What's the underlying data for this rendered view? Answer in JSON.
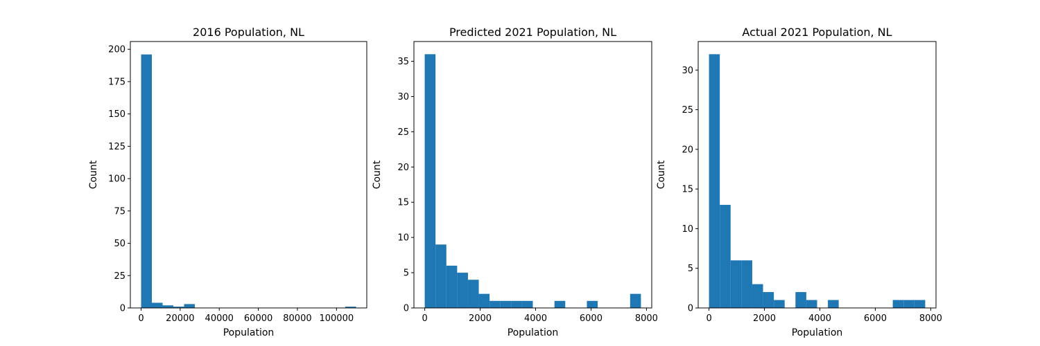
{
  "colors": {
    "bar": "#1f77b4",
    "axes": "#000000",
    "background": "#ffffff"
  },
  "chart_data": [
    {
      "type": "bar",
      "title": "2016 Population, NL",
      "xlabel": "Population",
      "ylabel": "Count",
      "xlim": [
        -5500,
        115500
      ],
      "ylim": [
        0,
        206
      ],
      "x_ticks": [
        0,
        20000,
        40000,
        60000,
        80000,
        100000
      ],
      "x_tick_labels": [
        "0",
        "20000",
        "40000",
        "60000",
        "80000",
        "100000"
      ],
      "y_ticks": [
        0,
        25,
        50,
        75,
        100,
        125,
        150,
        175,
        200
      ],
      "y_tick_labels": [
        "0",
        "25",
        "50",
        "75",
        "100",
        "125",
        "150",
        "175",
        "200"
      ],
      "bin_range": [
        0,
        110000
      ],
      "bin_counts": [
        196,
        4,
        2,
        1,
        3,
        0,
        0,
        0,
        0,
        0,
        0,
        0,
        0,
        0,
        0,
        0,
        0,
        0,
        0,
        1
      ]
    },
    {
      "type": "bar",
      "title": "Predicted 2021 Population, NL",
      "xlabel": "Population",
      "ylabel": "Count",
      "xlim": [
        -390,
        8190
      ],
      "ylim": [
        0,
        37.8
      ],
      "x_ticks": [
        0,
        2000,
        4000,
        6000,
        8000
      ],
      "x_tick_labels": [
        "0",
        "2000",
        "4000",
        "6000",
        "8000"
      ],
      "y_ticks": [
        0,
        5,
        10,
        15,
        20,
        25,
        30,
        35
      ],
      "y_tick_labels": [
        "0",
        "5",
        "10",
        "15",
        "20",
        "25",
        "30",
        "35"
      ],
      "bin_range": [
        0,
        7800
      ],
      "bin_counts": [
        36,
        9,
        6,
        5,
        4,
        2,
        1,
        1,
        1,
        1,
        0,
        0,
        1,
        0,
        0,
        1,
        0,
        0,
        0,
        2
      ]
    },
    {
      "type": "bar",
      "title": "Actual 2021 Population, NL",
      "xlabel": "Population",
      "ylabel": "Count",
      "xlim": [
        -390,
        8190
      ],
      "ylim": [
        0,
        33.6
      ],
      "x_ticks": [
        0,
        2000,
        4000,
        6000,
        8000
      ],
      "x_tick_labels": [
        "0",
        "2000",
        "4000",
        "6000",
        "8000"
      ],
      "y_ticks": [
        0,
        5,
        10,
        15,
        20,
        25,
        30
      ],
      "y_tick_labels": [
        "0",
        "5",
        "10",
        "15",
        "20",
        "25",
        "30"
      ],
      "bin_range": [
        0,
        7800
      ],
      "bin_counts": [
        32,
        13,
        6,
        6,
        3,
        2,
        1,
        0,
        2,
        1,
        0,
        1,
        0,
        0,
        0,
        0,
        0,
        1,
        1,
        1
      ]
    }
  ]
}
